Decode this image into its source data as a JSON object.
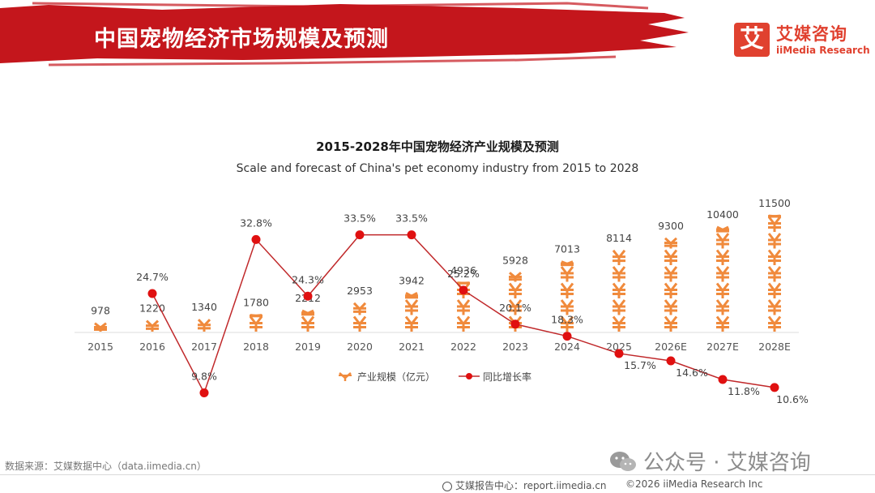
{
  "header": {
    "title": "中国宠物经济市场规模及预测",
    "banner_color": "#c4161c"
  },
  "logo": {
    "mark": "艾",
    "name_cn": "艾媒咨询",
    "name_en": "iiMedia Research",
    "color": "#e0412f"
  },
  "chart_data": {
    "type": "bar",
    "title": "2015-2028年中国宠物经济产业规模及预测",
    "subtitle": "Scale and forecast of China's pet economy industry from 2015 to 2028",
    "categories": [
      "2015",
      "2016",
      "2017",
      "2018",
      "2019",
      "2020",
      "2021",
      "2022",
      "2023",
      "2024",
      "2025",
      "2026E",
      "2027E",
      "2028E"
    ],
    "series": [
      {
        "name": "产业规模（亿元）",
        "type": "bar",
        "color": "#f08a3c",
        "icon": "yuan-symbol-stack",
        "values": [
          978,
          1220,
          1340,
          1780,
          2212,
          2953,
          3942,
          4936,
          5928,
          7013,
          8114,
          9300,
          10400,
          11500
        ],
        "labels": [
          "978",
          "1220",
          "1340",
          "1780",
          "2212",
          "2953",
          "3942",
          "4936",
          "5928",
          "7013",
          "8114",
          "9300",
          "10400",
          "11500"
        ]
      },
      {
        "name": "同比增长率",
        "type": "line",
        "color": "#e01010",
        "values": [
          null,
          24.7,
          9.8,
          32.8,
          24.3,
          33.5,
          33.5,
          25.2,
          20.1,
          18.3,
          15.7,
          14.6,
          11.8,
          10.6
        ],
        "labels": [
          "",
          "24.7%",
          "9.8%",
          "32.8%",
          "24.3%",
          "33.5%",
          "33.5%",
          "25.2%",
          "20.1%",
          "18.3%",
          "15.7%",
          "14.6%",
          "11.8%",
          "10.6%"
        ]
      }
    ],
    "legend_position": "bottom-center",
    "grid": false
  },
  "legend": {
    "bar_label": "产业规模（亿元）",
    "line_label": "同比增长率"
  },
  "source": "数据来源：艾媒数据中心（data.iimedia.cn）",
  "watermark": "公众号 · 艾媒咨询",
  "footer": {
    "report": "艾媒报告中心：report.iimedia.cn",
    "copyright": "©2026  iiMedia Research  Inc"
  }
}
